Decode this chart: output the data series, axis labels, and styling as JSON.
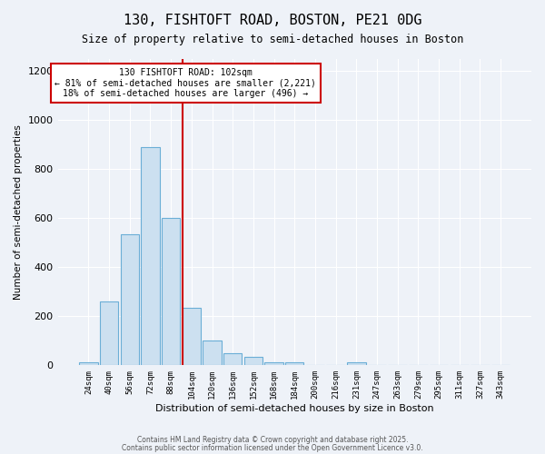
{
  "title1": "130, FISHTOFT ROAD, BOSTON, PE21 0DG",
  "title2": "Size of property relative to semi-detached houses in Boston",
  "xlabel": "Distribution of semi-detached houses by size in Boston",
  "ylabel": "Number of semi-detached properties",
  "bin_labels": [
    "24sqm",
    "40sqm",
    "56sqm",
    "72sqm",
    "88sqm",
    "104sqm",
    "120sqm",
    "136sqm",
    "152sqm",
    "168sqm",
    "184sqm",
    "200sqm",
    "216sqm",
    "231sqm",
    "247sqm",
    "263sqm",
    "279sqm",
    "295sqm",
    "311sqm",
    "327sqm",
    "343sqm"
  ],
  "bar_values": [
    13,
    260,
    535,
    890,
    600,
    235,
    100,
    50,
    35,
    13,
    13,
    0,
    0,
    13,
    0,
    0,
    0,
    0,
    0,
    0
  ],
  "bar_color": "#cce0f0",
  "bar_edge_color": "#6baed6",
  "vline_x_index": 5,
  "vline_color": "#cc0000",
  "annotation_title": "130 FISHTOFT ROAD: 102sqm",
  "annotation_line1": "← 81% of semi-detached houses are smaller (2,221)",
  "annotation_line2": "18% of semi-detached houses are larger (496) →",
  "annotation_box_color": "#cc0000",
  "ylim": [
    0,
    1250
  ],
  "yticks": [
    0,
    200,
    400,
    600,
    800,
    1000,
    1200
  ],
  "footer1": "Contains HM Land Registry data © Crown copyright and database right 2025.",
  "footer2": "Contains public sector information licensed under the Open Government Licence v3.0.",
  "bg_color": "#eef2f8",
  "plot_bg_color": "#eef2f8"
}
